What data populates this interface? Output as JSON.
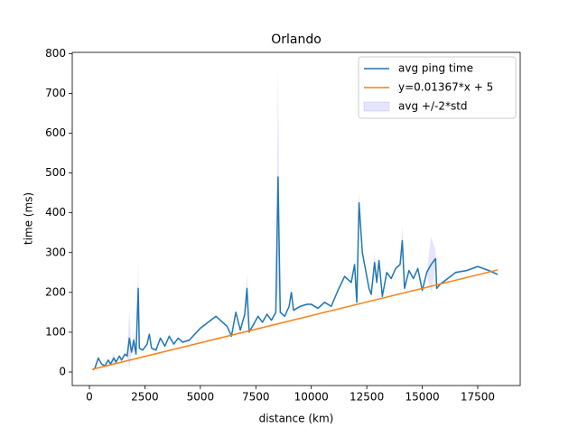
{
  "chart_data": {
    "type": "line",
    "title": "Orlando",
    "x_label": "distance (km)",
    "y_label": "time (ms)",
    "x": [
      150,
      250,
      400,
      550,
      700,
      850,
      950,
      1100,
      1200,
      1350,
      1450,
      1600,
      1700,
      1800,
      1900,
      2000,
      2100,
      2200,
      2250,
      2400,
      2600,
      2700,
      2800,
      3000,
      3200,
      3400,
      3600,
      3800,
      4000,
      4200,
      4500,
      5000,
      5700,
      6000,
      6200,
      6400,
      6600,
      6800,
      7000,
      7100,
      7200,
      7400,
      7600,
      7800,
      8000,
      8200,
      8400,
      8500,
      8600,
      8800,
      9000,
      9100,
      9200,
      9500,
      9800,
      10000,
      10300,
      10600,
      10900,
      11200,
      11500,
      11800,
      11950,
      12050,
      12150,
      12300,
      12450,
      12600,
      12700,
      12850,
      12950,
      13050,
      13200,
      13400,
      13600,
      13800,
      14000,
      14100,
      14200,
      14400,
      14600,
      14800,
      15000,
      15200,
      15400,
      15600,
      15650,
      15800,
      16500,
      17000,
      17500,
      18000,
      18400
    ],
    "series": [
      {
        "name": "avg ping time",
        "color": "#1f77b4",
        "values": [
          5,
          10,
          35,
          20,
          15,
          30,
          20,
          35,
          25,
          40,
          30,
          45,
          40,
          85,
          50,
          80,
          45,
          210,
          60,
          55,
          70,
          95,
          60,
          55,
          85,
          65,
          90,
          70,
          85,
          75,
          80,
          110,
          140,
          125,
          115,
          90,
          150,
          105,
          145,
          210,
          100,
          120,
          140,
          125,
          145,
          130,
          150,
          490,
          150,
          140,
          165,
          200,
          155,
          165,
          170,
          170,
          160,
          175,
          165,
          205,
          240,
          225,
          270,
          175,
          425,
          300,
          255,
          210,
          195,
          275,
          225,
          280,
          190,
          250,
          235,
          260,
          270,
          330,
          210,
          255,
          235,
          260,
          205,
          250,
          270,
          285,
          210,
          220,
          250,
          255,
          265,
          255,
          245
        ]
      },
      {
        "name": "y=0.01367*x + 5",
        "color": "#ff7f0e",
        "x": [
          150,
          18400
        ],
        "values": [
          7.05,
          256.5
        ]
      },
      {
        "name": "avg +/-2*std",
        "color": "#0000ff",
        "opacity": 0.1,
        "values": [
          3,
          3,
          3,
          3,
          3,
          3,
          3,
          15,
          3,
          3,
          3,
          3,
          3,
          75,
          3,
          25,
          3,
          70,
          3,
          3,
          3,
          3,
          3,
          3,
          3,
          3,
          3,
          3,
          3,
          3,
          3,
          3,
          3,
          3,
          3,
          3,
          3,
          3,
          3,
          40,
          3,
          3,
          3,
          3,
          3,
          3,
          3,
          275,
          3,
          3,
          3,
          3,
          3,
          3,
          3,
          3,
          3,
          3,
          3,
          3,
          3,
          3,
          3,
          3,
          35,
          3,
          3,
          3,
          3,
          25,
          3,
          3,
          3,
          3,
          3,
          3,
          3,
          40,
          3,
          3,
          3,
          3,
          3,
          3,
          70,
          20,
          3,
          3,
          3,
          3,
          3,
          3,
          3
        ]
      }
    ],
    "xlim": [
      -773,
      19413
    ],
    "ylim": [
      -34,
      803
    ],
    "xticks": [
      0,
      2500,
      5000,
      7500,
      10000,
      12500,
      15000,
      17500
    ],
    "yticks": [
      0,
      100,
      200,
      300,
      400,
      500,
      600,
      700,
      800
    ],
    "legend": "upper right"
  }
}
